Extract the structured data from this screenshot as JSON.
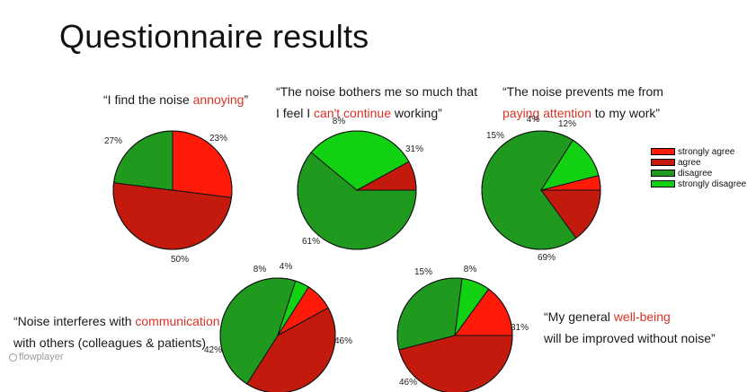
{
  "title": "Questionnaire results",
  "legend": [
    {
      "label": "strongly agree",
      "color": "#ff1a0a"
    },
    {
      "label": "agree",
      "color": "#c41a0d"
    },
    {
      "label": "disagree",
      "color": "#1f9a1f"
    },
    {
      "label": "strongly disagree",
      "color": "#12d012"
    }
  ],
  "captions": [
    {
      "line1_a": "“I find the noise ",
      "line1_hl": "annoying",
      "line1_b": "”"
    },
    {
      "line1": "“The noise bothers me so much that",
      "line2_a": "I feel I ",
      "line2_hl": "can't continue",
      "line2_b": " working”"
    },
    {
      "line1": "“The noise prevents me from",
      "line2_hl": "paying attention",
      "line2_b": " to my work”"
    },
    {
      "line1_a": "“Noise interferes with ",
      "line1_hl": "communication",
      "line2": "with others (colleagues & patients)"
    },
    {
      "line1_a": "“My general ",
      "line1_hl": "well-being",
      "line2": "will be improved without noise”"
    }
  ],
  "chart_data": [
    {
      "type": "pie",
      "categories": [
        "strongly agree",
        "agree",
        "disagree",
        "strongly disagree"
      ],
      "values": [
        27,
        50,
        23,
        0
      ],
      "labels": [
        "27%",
        "50%",
        "23%",
        ""
      ]
    },
    {
      "type": "pie",
      "categories": [
        "strongly agree",
        "agree",
        "disagree",
        "strongly disagree"
      ],
      "values": [
        0,
        8,
        61,
        31
      ],
      "labels": [
        "",
        "8%",
        "61%",
        "31%"
      ]
    },
    {
      "type": "pie",
      "categories": [
        "strongly agree",
        "agree",
        "disagree",
        "strongly disagree"
      ],
      "values": [
        4,
        15,
        69,
        12
      ],
      "labels": [
        "4%",
        "15%",
        "69%",
        "12%"
      ]
    },
    {
      "type": "pie",
      "categories": [
        "strongly agree",
        "agree",
        "disagree",
        "strongly disagree"
      ],
      "values": [
        8,
        42,
        46,
        4
      ],
      "labels": [
        "8%",
        "42%",
        "46%",
        "4%"
      ]
    },
    {
      "type": "pie",
      "categories": [
        "strongly agree",
        "agree",
        "disagree",
        "strongly disagree"
      ],
      "values": [
        15,
        46,
        31,
        8
      ],
      "labels": [
        "15%",
        "46%",
        "31%",
        "8%"
      ]
    }
  ],
  "watermark": "flowplayer"
}
